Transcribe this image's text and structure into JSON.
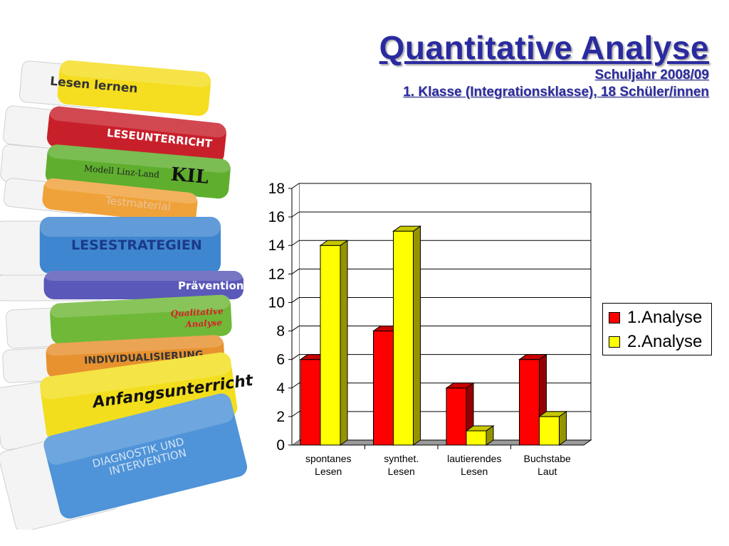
{
  "header": {
    "title": "Quantitative Analyse",
    "subtitle1": "Schuljahr 2008/09",
    "subtitle2": "1. Klasse (Integrationsklasse), 18 Schüler/innen"
  },
  "books": [
    {
      "label": "Lesen lernen",
      "color": "#f5dd1f"
    },
    {
      "label": "LESEUNTERRICHT",
      "color": "#c8202b"
    },
    {
      "label": "Modell Linz-Land",
      "color": "#5fae2e"
    },
    {
      "label": "KIL",
      "color": "#5fae2e"
    },
    {
      "label": "Testmaterial",
      "color": "#f0a23a"
    },
    {
      "label": "LESESTRATEGIEN",
      "color": "#3f86d0"
    },
    {
      "label": "Prävention",
      "color": "#5a58b8"
    },
    {
      "label": "Qualitative Analyse",
      "color": "#6fb838"
    },
    {
      "label": "INDIVIDUALISIERUNG",
      "color": "#e7912f"
    },
    {
      "label": "Anfangsunterricht",
      "color": "#f2de1d"
    },
    {
      "label": "DIAGNOSTIK UND INTERVENTION",
      "color": "#4f93d8"
    }
  ],
  "legend": {
    "items": [
      {
        "label": "1.Analyse",
        "color": "#ff0000"
      },
      {
        "label": "2.Analyse",
        "color": "#ffff00"
      }
    ]
  },
  "chart_data": {
    "type": "bar",
    "categories": [
      "spontanes\nLesen",
      "synthet.\nLesen",
      "lautierendes\nLesen",
      "Buchstabe\nLaut"
    ],
    "series": [
      {
        "name": "1.Analyse",
        "values": [
          6,
          8,
          4,
          6
        ],
        "color": "#ff0000"
      },
      {
        "name": "2.Analyse",
        "values": [
          14,
          15,
          1,
          2
        ],
        "color": "#ffff00"
      }
    ],
    "ylim": [
      0,
      18
    ],
    "yticks": [
      0,
      2,
      4,
      6,
      8,
      10,
      12,
      14,
      16,
      18
    ],
    "grid": true,
    "legend_position": "right",
    "three_d": true
  }
}
